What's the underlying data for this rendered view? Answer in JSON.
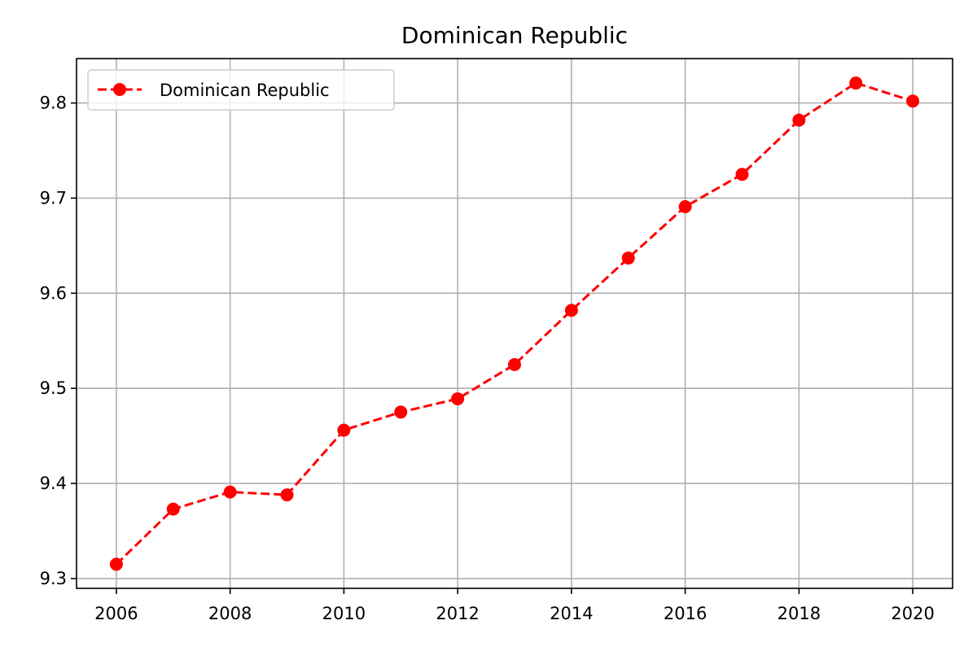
{
  "chart_data": {
    "type": "line",
    "title": "Dominican Republic",
    "xlabel": "",
    "ylabel": "",
    "x": [
      2006,
      2007,
      2008,
      2009,
      2010,
      2011,
      2012,
      2013,
      2014,
      2015,
      2016,
      2017,
      2018,
      2019,
      2020
    ],
    "series": [
      {
        "name": "Dominican Republic",
        "color": "#ff0000",
        "line_style": "dashed",
        "marker": "circle",
        "values": [
          9.315,
          9.373,
          9.391,
          9.388,
          9.456,
          9.475,
          9.489,
          9.525,
          9.582,
          9.637,
          9.691,
          9.725,
          9.782,
          9.821,
          9.802
        ]
      }
    ],
    "xlim": [
      2005.3,
      2020.7
    ],
    "ylim": [
      9.2897,
      9.8467
    ],
    "x_ticks": [
      "2006",
      "2008",
      "2010",
      "2012",
      "2014",
      "2016",
      "2018",
      "2020"
    ],
    "y_ticks": [
      "9.3",
      "9.4",
      "9.5",
      "9.6",
      "9.7",
      "9.8"
    ],
    "grid": true,
    "legend_position": "top-left"
  }
}
